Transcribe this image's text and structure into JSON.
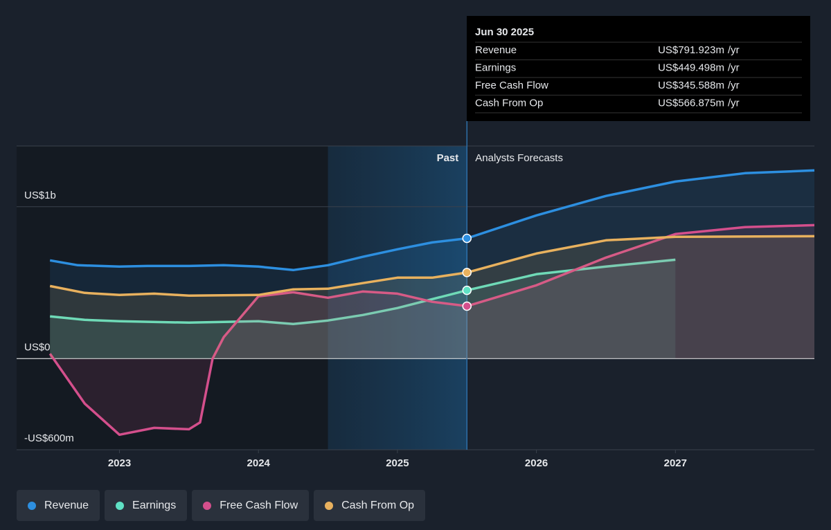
{
  "chart_data": {
    "type": "line",
    "xlim": [
      2022.26,
      2028.0
    ],
    "xticks": [
      2023,
      2024,
      2025,
      2026,
      2027
    ],
    "ylim": [
      -600,
      1400
    ],
    "yticks": [
      {
        "value": -600,
        "label": "-US$600m"
      },
      {
        "value": 0,
        "label": "US$0"
      },
      {
        "value": 1000,
        "label": "US$1b"
      }
    ],
    "past_label": "Past",
    "forecast_label": "Analysts Forecasts",
    "past_range": [
      2024.5,
      2025.5
    ],
    "series": [
      {
        "name": "Revenue",
        "color": "#2d8fe0",
        "x": [
          2022.5,
          2022.7,
          2023,
          2023.2,
          2023.5,
          2023.75,
          2024,
          2024.25,
          2024.5,
          2024.75,
          2025,
          2025.25,
          2025.5,
          2026,
          2026.5,
          2027,
          2027.5,
          2028
        ],
        "values": [
          647,
          615,
          606,
          610,
          610,
          615,
          606,
          583,
          615,
          670,
          720,
          765,
          791.923,
          943,
          1071,
          1166,
          1221,
          1239
        ]
      },
      {
        "name": "Earnings",
        "color": "#5fe0c4",
        "x": [
          2022.5,
          2022.75,
          2023,
          2023.5,
          2024,
          2024.25,
          2024.5,
          2024.75,
          2025,
          2025.5,
          2026,
          2026.5,
          2027
        ],
        "values": [
          278,
          255,
          246,
          237,
          246,
          228,
          251,
          287,
          333,
          449.498,
          556,
          606,
          651
        ]
      },
      {
        "name": "Free Cash Flow",
        "color": "#d44f8c",
        "x": [
          2022.5,
          2022.75,
          2023,
          2023.25,
          2023.5,
          2023.58,
          2023.67,
          2023.75,
          2024,
          2024.25,
          2024.5,
          2024.75,
          2025,
          2025.25,
          2025.5,
          2026,
          2026.5,
          2027,
          2027.5,
          2028
        ],
        "values": [
          32,
          -296,
          -501,
          -456,
          -465,
          -420,
          0,
          141,
          410,
          437,
          401,
          442,
          428,
          374,
          345.588,
          483,
          665,
          820,
          866,
          879
        ]
      },
      {
        "name": "Cash From Op",
        "color": "#e8b15e",
        "x": [
          2022.5,
          2022.75,
          2023,
          2023.25,
          2023.5,
          2024,
          2024.25,
          2024.5,
          2024.75,
          2025,
          2025.25,
          2025.5,
          2026,
          2026.5,
          2027,
          2028
        ],
        "values": [
          478,
          433,
          419,
          428,
          415,
          419,
          456,
          460,
          497,
          533,
          533,
          566.875,
          692,
          779,
          802,
          806
        ]
      }
    ],
    "tooltip": {
      "date": "Jun 30 2025",
      "unit": "/yr",
      "value_labels": [
        "US$791.923m",
        "US$449.498m",
        "US$345.588m",
        "US$566.875m"
      ]
    }
  }
}
